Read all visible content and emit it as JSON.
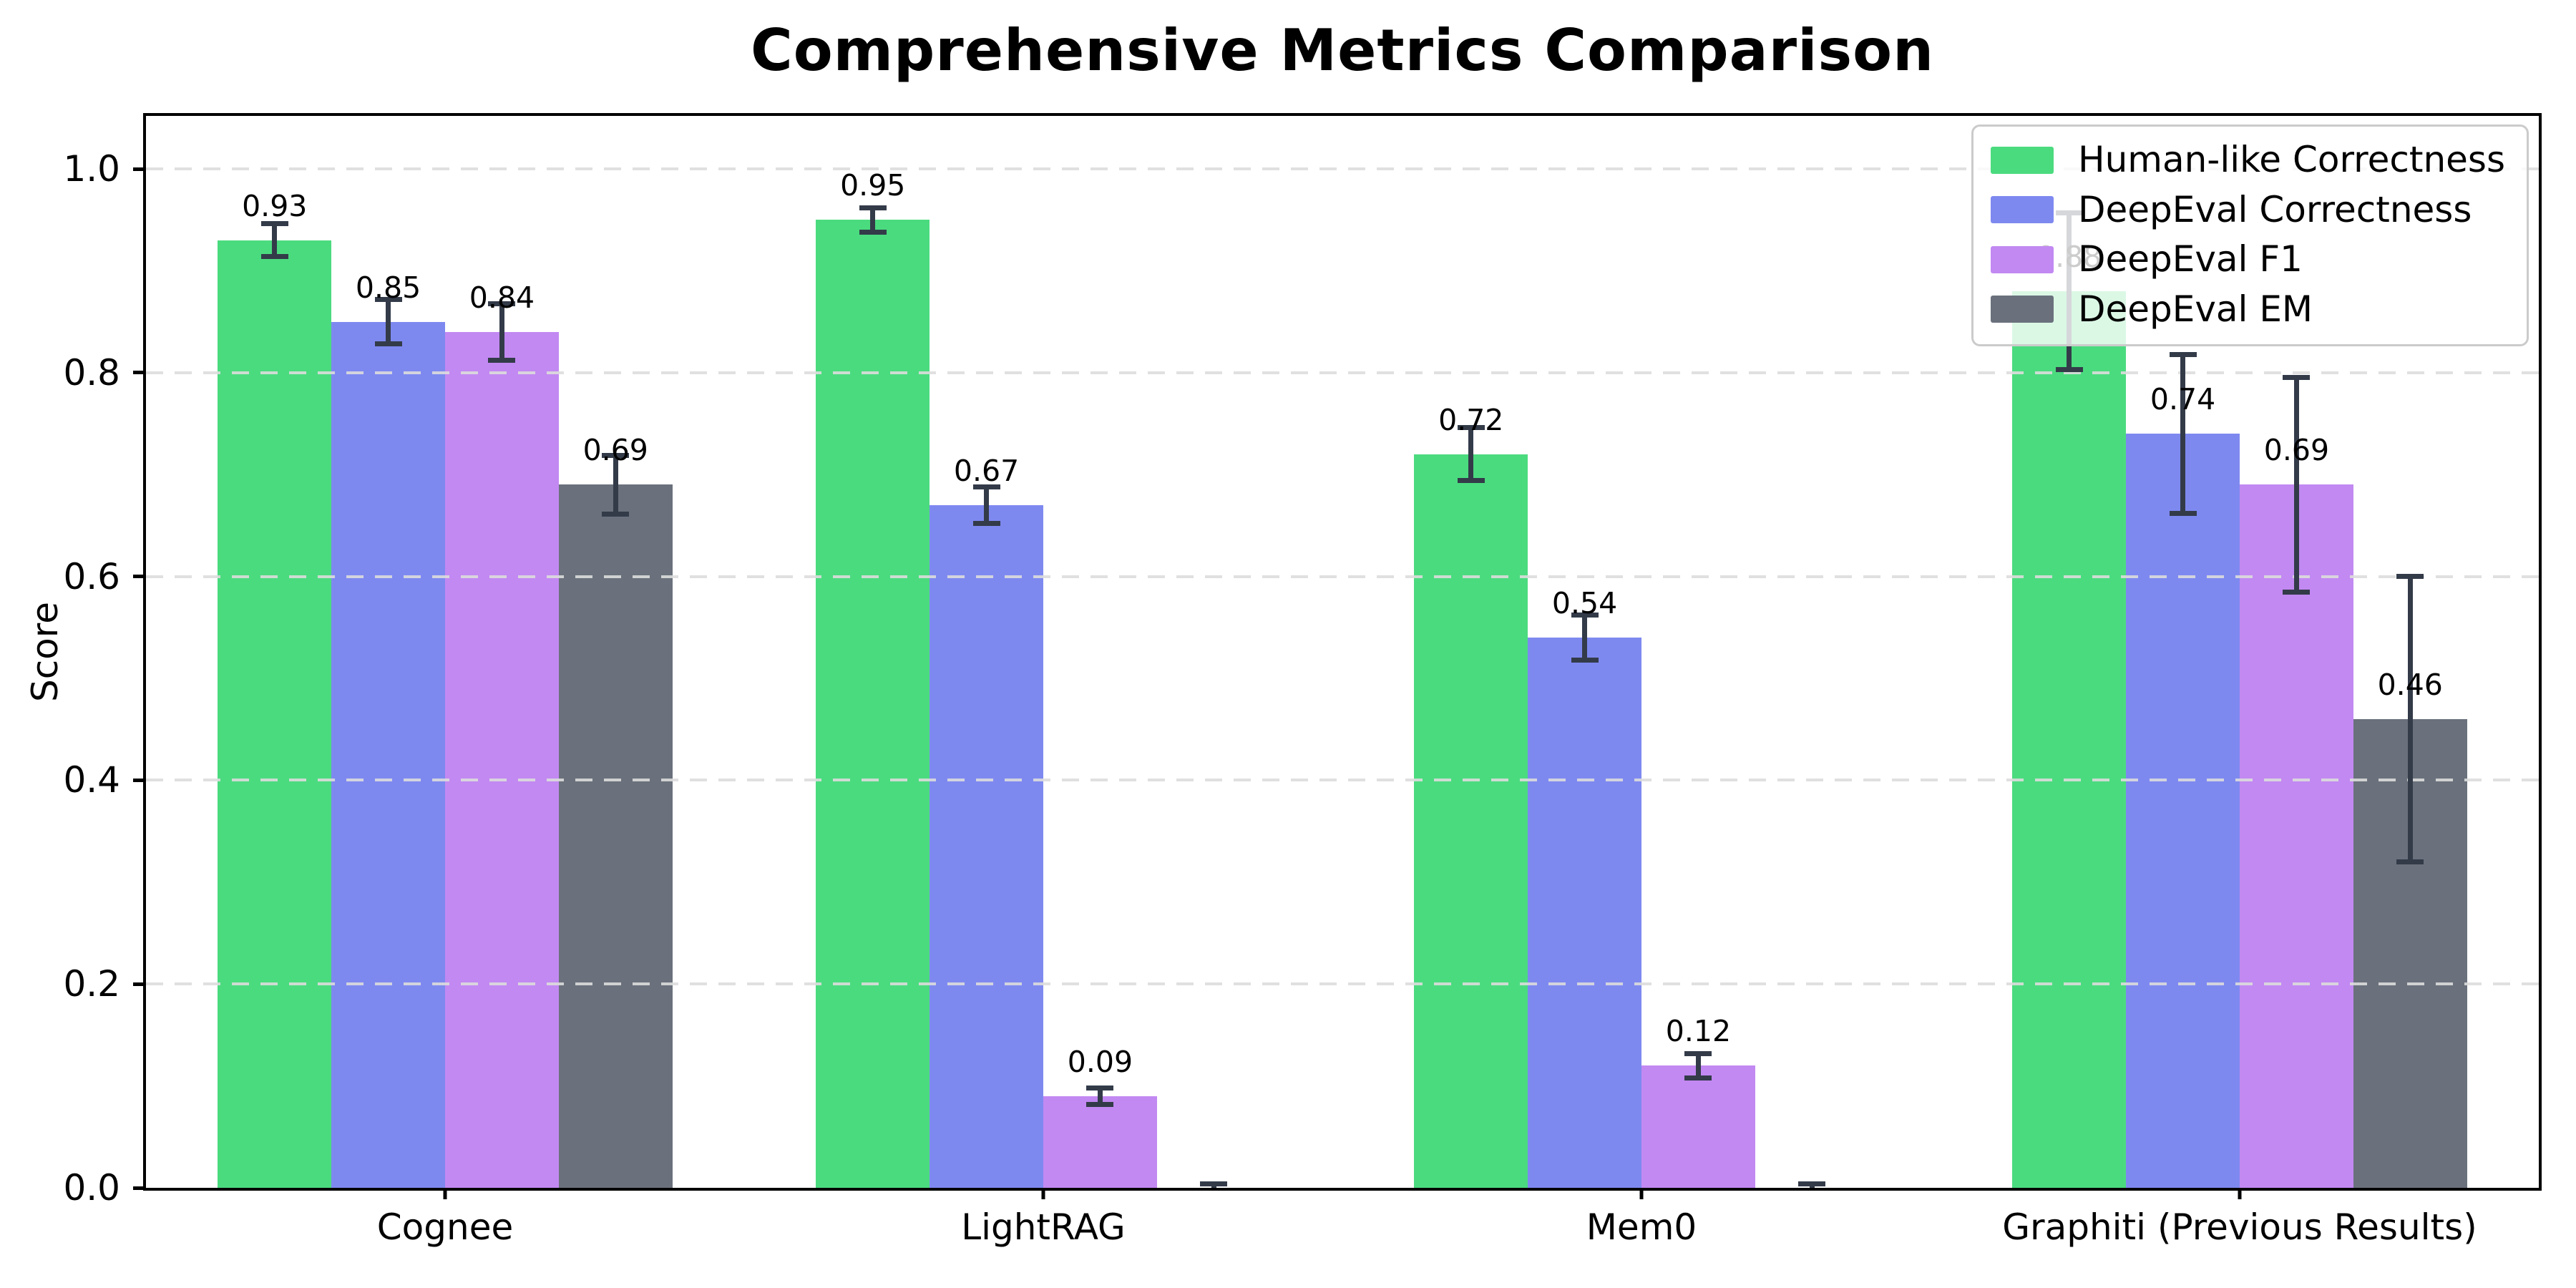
{
  "chart_data": {
    "type": "bar",
    "title": "Comprehensive Metrics Comparison",
    "ylabel": "Score",
    "xlabel": "",
    "ylim": [
      0,
      1.052
    ],
    "yticks": [
      0.0,
      0.2,
      0.4,
      0.6,
      0.8,
      1.0
    ],
    "ytick_labels": [
      "0.0",
      "0.2",
      "0.4",
      "0.6",
      "0.8",
      "1.0"
    ],
    "grid": {
      "axis": "y",
      "style": "dashed",
      "color": "#dcdcdc",
      "drawn_above_bars": true
    },
    "legend": {
      "position": "upper right"
    },
    "categories": [
      "Cognee",
      "LightRAG",
      "Mem0",
      "Graphiti (Previous Results)"
    ],
    "bar_width_fraction": 0.19,
    "errorbar_color": "#333b49",
    "series": [
      {
        "name": "Human-like Correctness",
        "color": "#4bdb7f",
        "values": [
          0.93,
          0.95,
          0.72,
          0.88
        ],
        "errors": [
          0.016,
          0.012,
          0.026,
          0.077
        ],
        "bar_labels": [
          "0.93",
          "0.95",
          "0.72",
          "0.88"
        ]
      },
      {
        "name": "DeepEval Correctness",
        "color": "#7e89f0",
        "values": [
          0.85,
          0.67,
          0.54,
          0.74
        ],
        "errors": [
          0.022,
          0.018,
          0.022,
          0.078
        ],
        "bar_labels": [
          "0.85",
          "0.67",
          "0.54",
          "0.74"
        ]
      },
      {
        "name": "DeepEval F1",
        "color": "#c289f2",
        "values": [
          0.84,
          0.09,
          0.12,
          0.69
        ],
        "errors": [
          0.028,
          0.008,
          0.012,
          0.105
        ],
        "bar_labels": [
          "0.84",
          "0.09",
          "0.12",
          "0.69"
        ]
      },
      {
        "name": "DeepEval EM",
        "color": "#6a717c",
        "values": [
          0.69,
          0.0,
          0.0,
          0.46
        ],
        "errors": [
          0.029,
          0.004,
          0.004,
          0.14
        ],
        "bar_labels": [
          "0.69",
          null,
          null,
          "0.46"
        ]
      }
    ]
  }
}
